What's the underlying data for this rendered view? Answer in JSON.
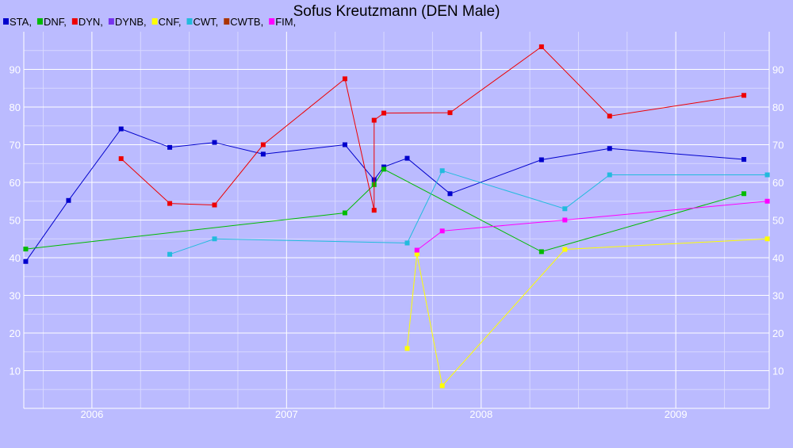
{
  "chart_data": {
    "type": "line",
    "title": "Sofus Kreutzmann (DEN Male)",
    "xlabel": "",
    "ylabel": "",
    "xlim": [
      2005.65,
      2009.48
    ],
    "ylim": [
      0,
      100
    ],
    "grid": true,
    "background": "#bbbbff",
    "legend_position": "top-left",
    "x_ticks": [
      {
        "value": 2006.0,
        "label": "2006"
      },
      {
        "value": 2007.0,
        "label": "2007"
      },
      {
        "value": 2008.0,
        "label": "2008"
      },
      {
        "value": 2009.0,
        "label": "2009"
      }
    ],
    "y_ticks": [
      10,
      20,
      30,
      40,
      50,
      60,
      70,
      80,
      90
    ],
    "y_tick_labels": [
      "10",
      "20",
      "30",
      "40",
      "50",
      "60",
      "70",
      "80",
      "90"
    ],
    "series": [
      {
        "name": "STA,",
        "color": "#0000cc",
        "points": [
          [
            2005.66,
            39
          ],
          [
            2005.88,
            55.2
          ],
          [
            2006.15,
            74.2
          ],
          [
            2006.4,
            69.3
          ],
          [
            2006.63,
            70.6
          ],
          [
            2006.88,
            67.5
          ],
          [
            2007.3,
            70
          ],
          [
            2007.45,
            60.7
          ],
          [
            2007.5,
            64.1
          ],
          [
            2007.62,
            66.4
          ],
          [
            2007.84,
            57
          ],
          [
            2008.31,
            66
          ],
          [
            2008.66,
            69
          ],
          [
            2009.35,
            66.1
          ]
        ]
      },
      {
        "name": "DNF,",
        "color": "#00bb00",
        "points": [
          [
            2005.66,
            42.3
          ],
          [
            2007.3,
            51.9
          ],
          [
            2007.45,
            59.4
          ],
          [
            2007.5,
            63.5
          ],
          [
            2008.31,
            41.6
          ],
          [
            2009.35,
            57
          ]
        ]
      },
      {
        "name": "DYN,",
        "color": "#ee0000",
        "points": [
          [
            2006.15,
            66.3
          ],
          [
            2006.4,
            54.4
          ],
          [
            2006.63,
            54
          ],
          [
            2006.88,
            70
          ],
          [
            2007.3,
            87.5
          ],
          [
            2007.45,
            52.6
          ],
          [
            2007.45,
            76.5
          ],
          [
            2007.5,
            78.4
          ],
          [
            2007.84,
            78.5
          ],
          [
            2008.31,
            96
          ],
          [
            2008.66,
            77.6
          ],
          [
            2009.35,
            83.1
          ]
        ]
      },
      {
        "name": "DYNB,",
        "color": "#7733ee",
        "points": []
      },
      {
        "name": "CNF,",
        "color": "#ffff00",
        "points": [
          [
            2007.62,
            15.9
          ],
          [
            2007.67,
            41
          ],
          [
            2007.8,
            6
          ],
          [
            2008.43,
            42.2
          ],
          [
            2009.47,
            45
          ]
        ]
      },
      {
        "name": "CWT,",
        "color": "#22bbdd",
        "points": [
          [
            2006.4,
            40.9
          ],
          [
            2006.63,
            45
          ],
          [
            2007.62,
            43.9
          ],
          [
            2007.8,
            63.1
          ],
          [
            2008.43,
            53
          ],
          [
            2008.66,
            62
          ],
          [
            2009.47,
            62
          ]
        ]
      },
      {
        "name": "CWTB,",
        "color": "#aa3300",
        "points": []
      },
      {
        "name": "FIM,",
        "color": "#ff00ff",
        "points": [
          [
            2007.67,
            42
          ],
          [
            2007.8,
            47.1
          ],
          [
            2008.43,
            50
          ],
          [
            2009.47,
            55
          ]
        ]
      }
    ]
  }
}
